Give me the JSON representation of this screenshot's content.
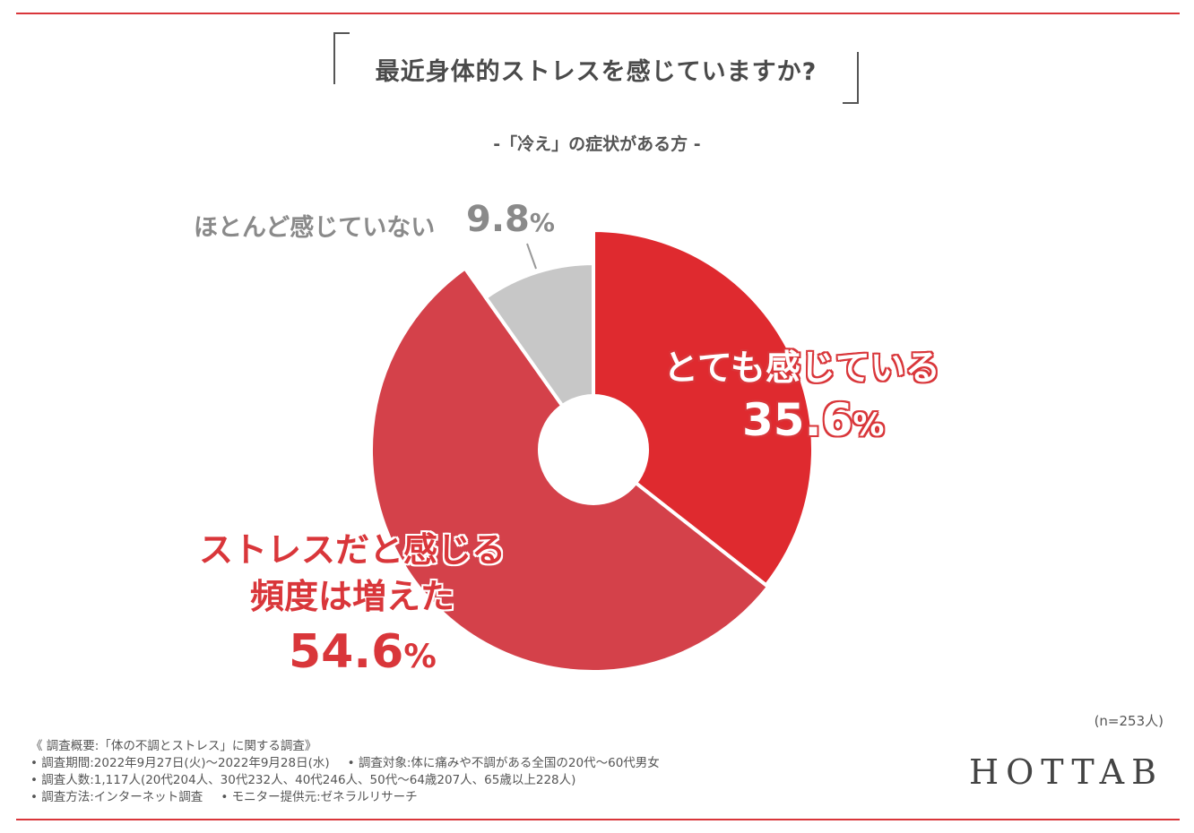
{
  "title": "最近身体的ストレスを感じていますか?",
  "subtitle": "-「冷え」の症状がある方 -",
  "chart_data": {
    "type": "pie",
    "title": "最近身体的ストレスを感じていますか?",
    "subtitle": "-「冷え」の症状がある方 -",
    "slices": [
      {
        "label": "とても感じている",
        "value": 35.6,
        "display": "35.6",
        "color": "#df2a2f"
      },
      {
        "label": "ストレスだと感じる頻度は増えた",
        "label_lines": [
          "ストレスだと感じる",
          "頻度は増えた"
        ],
        "value": 54.6,
        "display": "54.6",
        "color": "#d4414a"
      },
      {
        "label": "ほとんど感じていない",
        "value": 9.8,
        "display": "9.8",
        "color": "#c7c7c7"
      }
    ],
    "unit": "%",
    "sample_size": "(n=253人)"
  },
  "notes": {
    "line1": "《 調査概要:「体の不調とストレス」に関する調査》",
    "line2a": "• 調査期間:2022年9月27日(火)〜2022年9月28日(水)",
    "line2b": "• 調査対象:体に痛みや不調がある全国の20代〜60代男女",
    "line3": "• 調査人数:1,117人(20代204人、30代232人、40代246人、50代〜64歳207人、65歳以上228人)",
    "line4a": "• 調査方法:インターネット調査",
    "line4b": "• モニター提供元:ゼネラルリサーチ"
  },
  "brand": "HOTTAB"
}
